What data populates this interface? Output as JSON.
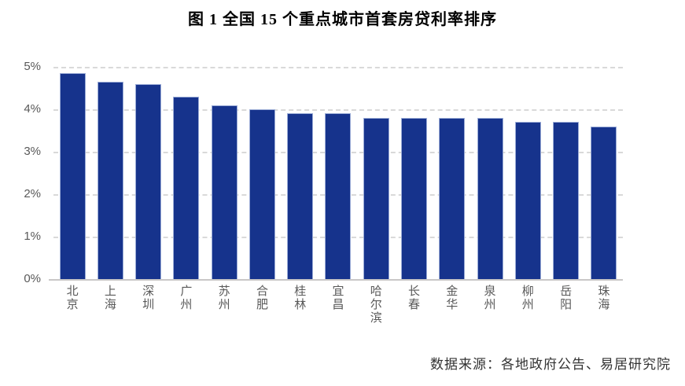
{
  "title": "图 1  全国 15 个重点城市首套房贷利率排序",
  "source": "数据来源：各地政府公告、易居研究院",
  "colors": {
    "bar": "#16338C",
    "bar_border": "#9AABD6",
    "grid": "#D9D9D9",
    "axis": "#C9C7C7",
    "label": "#595959"
  },
  "chart_data": {
    "type": "bar",
    "title": "图 1  全国 15 个重点城市首套房贷利率排序",
    "categories": [
      "北京",
      "上海",
      "深圳",
      "广州",
      "苏州",
      "合肥",
      "桂林",
      "宜昌",
      "哈尔滨",
      "长春",
      "金华",
      "泉州",
      "柳州",
      "岳阳",
      "珠海"
    ],
    "values": [
      4.85,
      4.65,
      4.6,
      4.3,
      4.1,
      4.0,
      3.9,
      3.9,
      3.8,
      3.8,
      3.8,
      3.8,
      3.7,
      3.7,
      3.6
    ],
    "unit": "%",
    "xlabel": "",
    "ylabel": "",
    "ylim": [
      0,
      5
    ],
    "yticks": [
      "0%",
      "1%",
      "2%",
      "3%",
      "4%",
      "5%"
    ],
    "grid": "horizontal-dashed",
    "legend": "none",
    "bar_orientation": "vertical",
    "source_note": "数据来源：各地政府公告、易居研究院"
  }
}
